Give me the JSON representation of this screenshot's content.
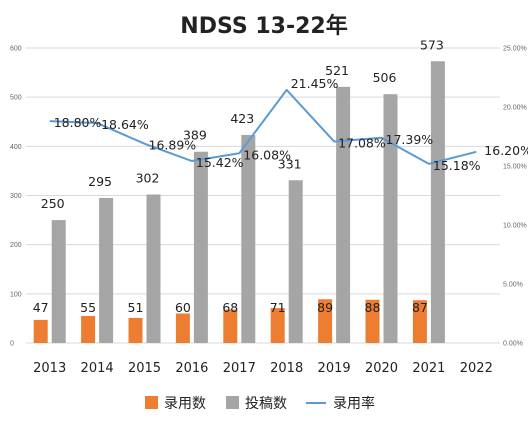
{
  "chart_data": {
    "type": "bar",
    "title": "NDSS 13-22年",
    "categories": [
      "2013",
      "2014",
      "2015",
      "2016",
      "2017",
      "2018",
      "2019",
      "2020",
      "2021",
      "2022"
    ],
    "left_axis": {
      "ticks": [
        0,
        100,
        200,
        300,
        400,
        500,
        600
      ],
      "tick_labels": [
        "0",
        "100",
        "200",
        "300",
        "400",
        "500",
        "600"
      ],
      "ylim": [
        0,
        600
      ]
    },
    "right_axis": {
      "ticks": [
        0,
        5,
        10,
        15,
        20,
        25
      ],
      "tick_labels": [
        "0.00%",
        "5.00%",
        "10.00%",
        "15.00%",
        "20.00%",
        "25.00%"
      ],
      "ylim": [
        0,
        25
      ]
    },
    "grid": true,
    "legend_position": "bottom",
    "series": [
      {
        "name": "录用数",
        "type": "bar",
        "color": "#ED7D31",
        "values": [
          47,
          55,
          51,
          60,
          68,
          71,
          89,
          88,
          87,
          null
        ],
        "labels": [
          "47",
          "55",
          "51",
          "60",
          "68",
          "71",
          "89",
          "88",
          "87",
          ""
        ]
      },
      {
        "name": "投稿数",
        "type": "bar",
        "color": "#A5A5A5",
        "values": [
          250,
          295,
          302,
          389,
          423,
          331,
          521,
          506,
          573,
          null
        ],
        "labels": [
          "250",
          "295",
          "302",
          "389",
          "423",
          "331",
          "521",
          "506",
          "573",
          ""
        ]
      },
      {
        "name": "录用率",
        "type": "line",
        "axis": "right",
        "color": "#5B9BD5",
        "values": [
          18.8,
          18.64,
          16.89,
          15.42,
          16.08,
          21.45,
          17.08,
          17.39,
          15.18,
          16.2
        ],
        "labels": [
          "18.80%",
          "18.64%",
          "16.89%",
          "15.42%",
          "16.08%",
          "21.45%",
          "17.08%",
          "17.39%",
          "15.18%",
          "16.20%"
        ]
      }
    ]
  }
}
